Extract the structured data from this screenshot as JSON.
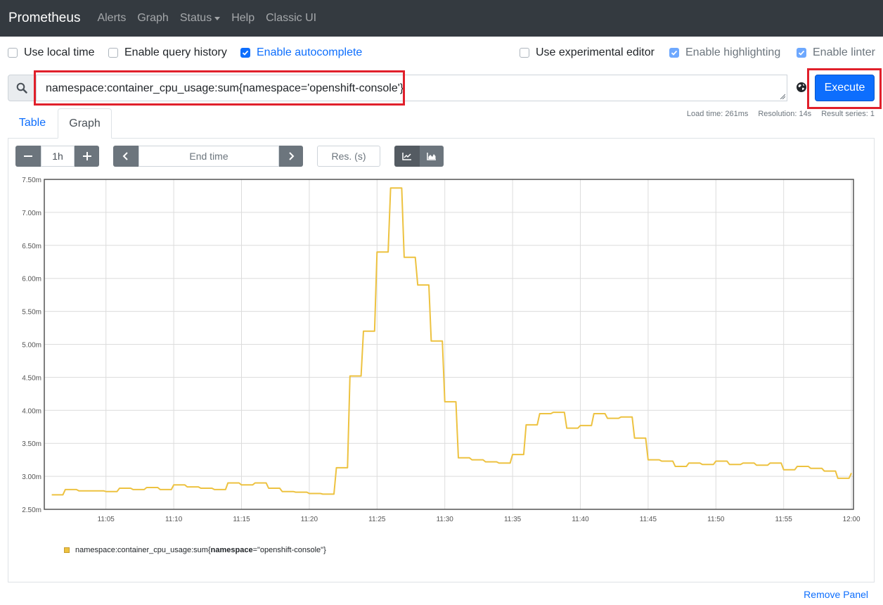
{
  "navbar": {
    "brand": "Prometheus",
    "items": [
      "Alerts",
      "Graph",
      "Status",
      "Help",
      "Classic UI"
    ]
  },
  "options": {
    "use_local_time": {
      "label": "Use local time",
      "checked": false
    },
    "enable_query_history": {
      "label": "Enable query history",
      "checked": false
    },
    "enable_autocomplete": {
      "label": "Enable autocomplete",
      "checked": true
    },
    "use_experimental_editor": {
      "label": "Use experimental editor",
      "checked": false
    },
    "enable_highlighting": {
      "label": "Enable highlighting",
      "checked": true
    },
    "enable_linter": {
      "label": "Enable linter",
      "checked": true
    }
  },
  "query": {
    "value": "namespace:container_cpu_usage:sum{namespace='openshift-console'}",
    "execute_label": "Execute"
  },
  "stats": {
    "load_time": "Load time: 261ms",
    "resolution": "Resolution: 14s",
    "result_series": "Result series: 1"
  },
  "tabs": {
    "table": "Table",
    "graph": "Graph"
  },
  "controls": {
    "range": "1h",
    "end_time_placeholder": "End time",
    "resolution_placeholder": "Res. (s)"
  },
  "legend": {
    "metric": "namespace:container_cpu_usage:sum",
    "label_key": "namespace",
    "label_value": "\"openshift-console\""
  },
  "remove_panel": "Remove Panel",
  "colors": {
    "navbar": "#343a40",
    "primary": "#0d6efd",
    "series": "#edc240",
    "highlight": "#e0202b"
  },
  "icons": [
    "search-icon",
    "globe-icon",
    "minus-icon",
    "plus-icon",
    "chevron-left-icon",
    "chevron-right-icon",
    "line-chart-icon",
    "area-chart-icon",
    "caret-down-icon",
    "check-icon"
  ],
  "chart_data": {
    "type": "line",
    "ylim": [
      2.5,
      7.5
    ],
    "y_unit": "m",
    "yticks": [
      "2.50m",
      "3.00m",
      "3.50m",
      "4.00m",
      "4.50m",
      "5.00m",
      "5.50m",
      "6.00m",
      "6.50m",
      "7.00m",
      "7.50m"
    ],
    "xticks": [
      "11:05",
      "11:10",
      "11:15",
      "11:20",
      "11:25",
      "11:30",
      "11:35",
      "11:40",
      "11:45",
      "11:50",
      "11:55",
      "12:00"
    ],
    "xlim": [
      "11:01",
      "12:00"
    ],
    "grid": true,
    "series": [
      {
        "name": "namespace:container_cpu_usage:sum{namespace=\"openshift-console\"}",
        "x": [
          "11:01",
          "11:02",
          "11:03",
          "11:04",
          "11:05",
          "11:06",
          "11:07",
          "11:08",
          "11:09",
          "11:10",
          "11:11",
          "11:12",
          "11:13",
          "11:14",
          "11:15",
          "11:16",
          "11:17",
          "11:18",
          "11:19",
          "11:20",
          "11:21",
          "11:22",
          "11:23",
          "11:24",
          "11:25",
          "11:26",
          "11:27",
          "11:28",
          "11:29",
          "11:30",
          "11:31",
          "11:32",
          "11:33",
          "11:34",
          "11:35",
          "11:36",
          "11:37",
          "11:38",
          "11:39",
          "11:40",
          "11:41",
          "11:42",
          "11:43",
          "11:44",
          "11:45",
          "11:46",
          "11:47",
          "11:48",
          "11:49",
          "11:50",
          "11:51",
          "11:52",
          "11:53",
          "11:54",
          "11:55",
          "11:56",
          "11:57",
          "11:58",
          "11:59",
          "12:00"
        ],
        "values": [
          2.72,
          2.8,
          2.78,
          2.78,
          2.77,
          2.82,
          2.8,
          2.83,
          2.8,
          2.87,
          2.84,
          2.82,
          2.8,
          2.9,
          2.87,
          2.9,
          2.82,
          2.77,
          2.76,
          2.74,
          2.73,
          3.13,
          4.52,
          5.2,
          6.4,
          7.37,
          6.32,
          5.9,
          5.05,
          4.13,
          3.28,
          3.25,
          3.22,
          3.2,
          3.33,
          3.78,
          3.95,
          3.97,
          3.73,
          3.77,
          3.95,
          3.88,
          3.9,
          3.58,
          3.25,
          3.23,
          3.15,
          3.2,
          3.18,
          3.23,
          3.18,
          3.2,
          3.17,
          3.2,
          3.1,
          3.15,
          3.12,
          3.08,
          2.97,
          3.05
        ]
      }
    ]
  }
}
